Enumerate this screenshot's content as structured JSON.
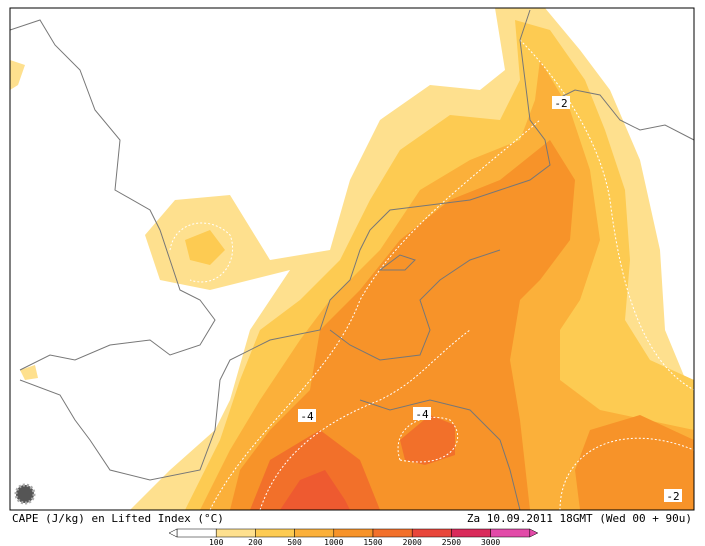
{
  "caption": {
    "left": "CAPE (J/kg) en Lifted Index (°C)",
    "right": "Za 10.09.2011 18GMT (Wed 00 + 90u)"
  },
  "contour_labels": [
    "-2",
    "-4",
    "-4",
    "-2"
  ],
  "legend": {
    "colors": [
      "#ffffff",
      "#fee08e",
      "#fdcb52",
      "#fbb03a",
      "#f79329",
      "#f2702a",
      "#e8463a",
      "#d92a5a",
      "#e24aa8"
    ],
    "labels": [
      "100",
      "200",
      "500",
      "1000",
      "1500",
      "2000",
      "2500",
      "3000"
    ]
  }
}
